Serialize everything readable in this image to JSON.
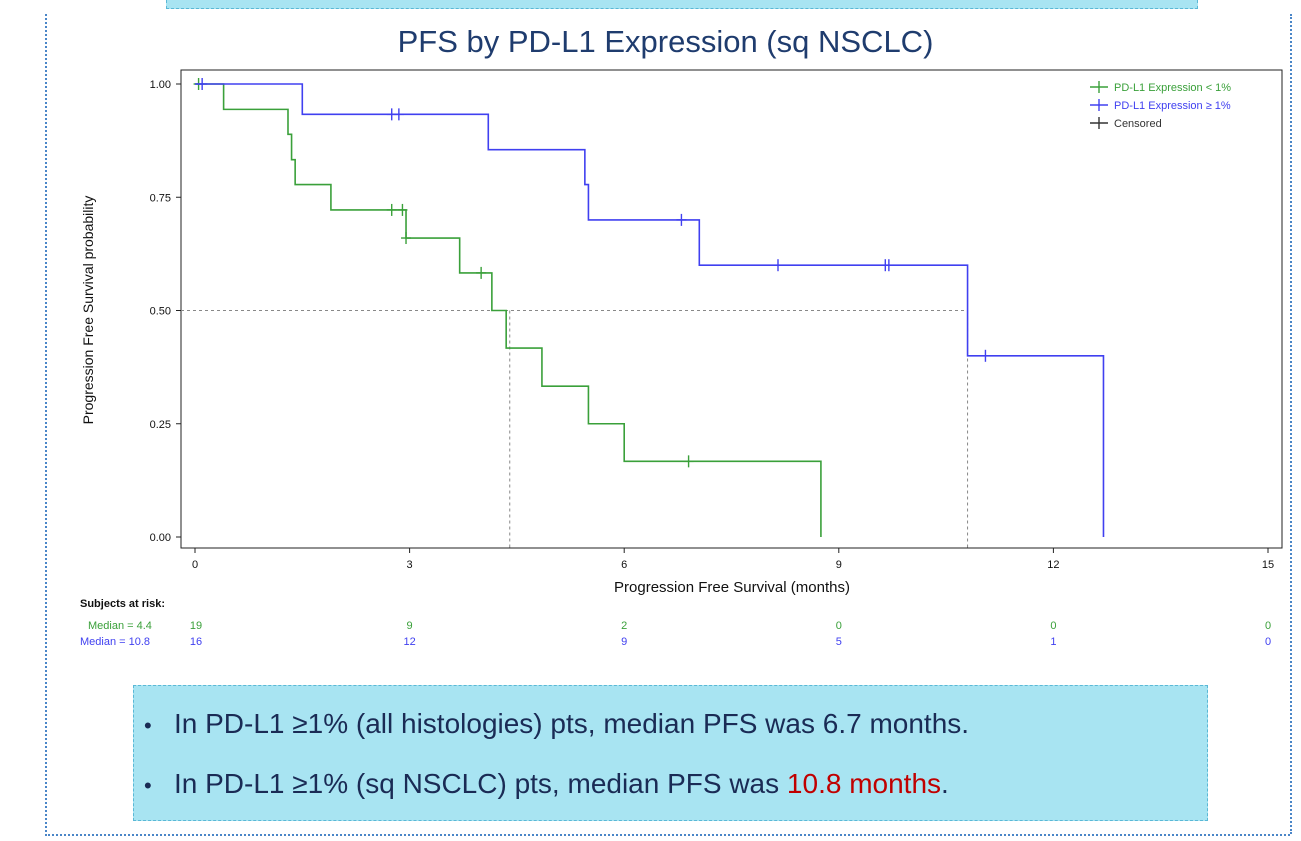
{
  "title": "PFS by PD-L1 Expression (sq NSCLC)",
  "chart_data": {
    "type": "line",
    "subtype": "kaplan-meier-step",
    "title": "PFS by PD-L1 Expression (sq NSCLC)",
    "xlabel": "Progression Free Survival (months)",
    "ylabel": "Progression Free Survival probability",
    "xlim": [
      0,
      15
    ],
    "ylim": [
      0,
      1
    ],
    "xticks": [
      "0",
      "3",
      "6",
      "9",
      "12",
      "15"
    ],
    "yticks": [
      "0.00",
      "0.25",
      "0.50",
      "0.75",
      "1.00"
    ],
    "median_line_y": 0.5,
    "legend_position": "top-right",
    "legend": [
      "PD-L1 Expression < 1%",
      "PD-L1 Expression ≥ 1%",
      "Censored"
    ],
    "series": [
      {
        "name": "PD-L1 Expression < 1%",
        "color": "#3aa03a",
        "median": 4.4,
        "steps": [
          [
            0,
            1.0
          ],
          [
            0.4,
            0.944
          ],
          [
            1.3,
            0.889
          ],
          [
            1.35,
            0.833
          ],
          [
            1.4,
            0.778
          ],
          [
            1.9,
            0.722
          ],
          [
            2.95,
            0.66
          ],
          [
            3.7,
            0.583
          ],
          [
            4.15,
            0.5
          ],
          [
            4.35,
            0.417
          ],
          [
            4.85,
            0.333
          ],
          [
            5.5,
            0.25
          ],
          [
            6.0,
            0.167
          ],
          [
            8.75,
            0.0
          ]
        ],
        "end_x": 8.75,
        "censored": [
          [
            0.05,
            1.0
          ],
          [
            2.75,
            0.722
          ],
          [
            2.9,
            0.722
          ],
          [
            2.95,
            0.66
          ],
          [
            4.0,
            0.583
          ],
          [
            6.9,
            0.167
          ]
        ]
      },
      {
        "name": "PD-L1 Expression ≥ 1%",
        "color": "#4040f0",
        "median": 10.8,
        "steps": [
          [
            0,
            1.0
          ],
          [
            1.5,
            0.933
          ],
          [
            4.1,
            0.855
          ],
          [
            5.45,
            0.778
          ],
          [
            5.5,
            0.7
          ],
          [
            7.05,
            0.6
          ],
          [
            10.8,
            0.4
          ],
          [
            12.7,
            0.0
          ]
        ],
        "end_x": 12.7,
        "censored": [
          [
            0.1,
            1.0
          ],
          [
            2.75,
            0.933
          ],
          [
            2.85,
            0.933
          ],
          [
            6.8,
            0.7
          ],
          [
            8.15,
            0.6
          ],
          [
            9.65,
            0.6
          ],
          [
            9.7,
            0.6
          ],
          [
            11.05,
            0.4
          ]
        ]
      }
    ],
    "at_risk": {
      "title": "Subjects at risk:",
      "times": [
        "0",
        "3",
        "6",
        "9",
        "12",
        "15"
      ],
      "rows": [
        {
          "label": "Median = 4.4",
          "color": "#3aa03a",
          "counts": [
            "19",
            "9",
            "2",
            "0",
            "0",
            "0"
          ]
        },
        {
          "label": "Median = 10.8",
          "color": "#4040f0",
          "counts": [
            "16",
            "12",
            "9",
            "5",
            "1",
            "0"
          ]
        }
      ]
    }
  },
  "bullets": [
    {
      "text": "In PD-L1 ≥1% (all histologies) pts, median PFS was 6.7 months.",
      "highlight": ""
    },
    {
      "text": "In PD-L1 ≥1% (sq NSCLC) pts, median PFS was ",
      "highlight": "10.8 months",
      "suffix": "."
    }
  ],
  "bullet_symbol": "•",
  "colors": {
    "bullet_box": "#a8e4f2",
    "highlight": "#c00000",
    "title": "#1f3c6e"
  }
}
